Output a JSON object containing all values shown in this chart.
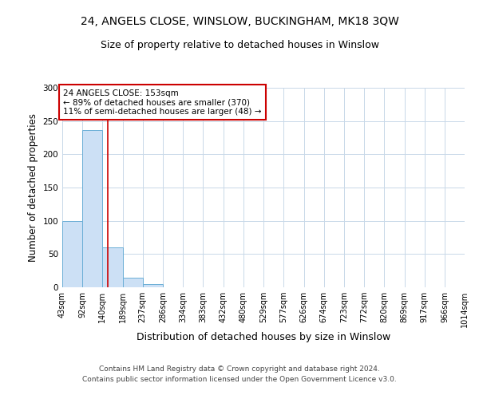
{
  "title": "24, ANGELS CLOSE, WINSLOW, BUCKINGHAM, MK18 3QW",
  "subtitle": "Size of property relative to detached houses in Winslow",
  "xlabel": "Distribution of detached houses by size in Winslow",
  "ylabel": "Number of detached properties",
  "footer_line1": "Contains HM Land Registry data © Crown copyright and database right 2024.",
  "footer_line2": "Contains public sector information licensed under the Open Government Licence v3.0.",
  "bin_edges": [
    43,
    92,
    140,
    189,
    237,
    286,
    334,
    383,
    432,
    480,
    529,
    577,
    626,
    674,
    723,
    772,
    820,
    869,
    917,
    966,
    1014
  ],
  "bin_counts": [
    100,
    237,
    60,
    15,
    5,
    0,
    0,
    0,
    0,
    0,
    0,
    0,
    0,
    0,
    0,
    0,
    0,
    0,
    0,
    0
  ],
  "bar_color": "#cce0f5",
  "bar_edgecolor": "#6baed6",
  "property_size": 153,
  "red_line_color": "#cc0000",
  "annotation_text": "24 ANGELS CLOSE: 153sqm\n← 89% of detached houses are smaller (370)\n11% of semi-detached houses are larger (48) →",
  "annotation_box_color": "#ffffff",
  "annotation_box_edgecolor": "#cc0000",
  "ylim": [
    0,
    300
  ],
  "yticks": [
    0,
    50,
    100,
    150,
    200,
    250,
    300
  ],
  "background_color": "#ffffff",
  "grid_color": "#c8d8e8",
  "title_fontsize": 10,
  "subtitle_fontsize": 9,
  "tick_label_fontsize": 7,
  "ylabel_fontsize": 8.5,
  "xlabel_fontsize": 9,
  "annotation_fontsize": 7.5,
  "footer_fontsize": 6.5
}
